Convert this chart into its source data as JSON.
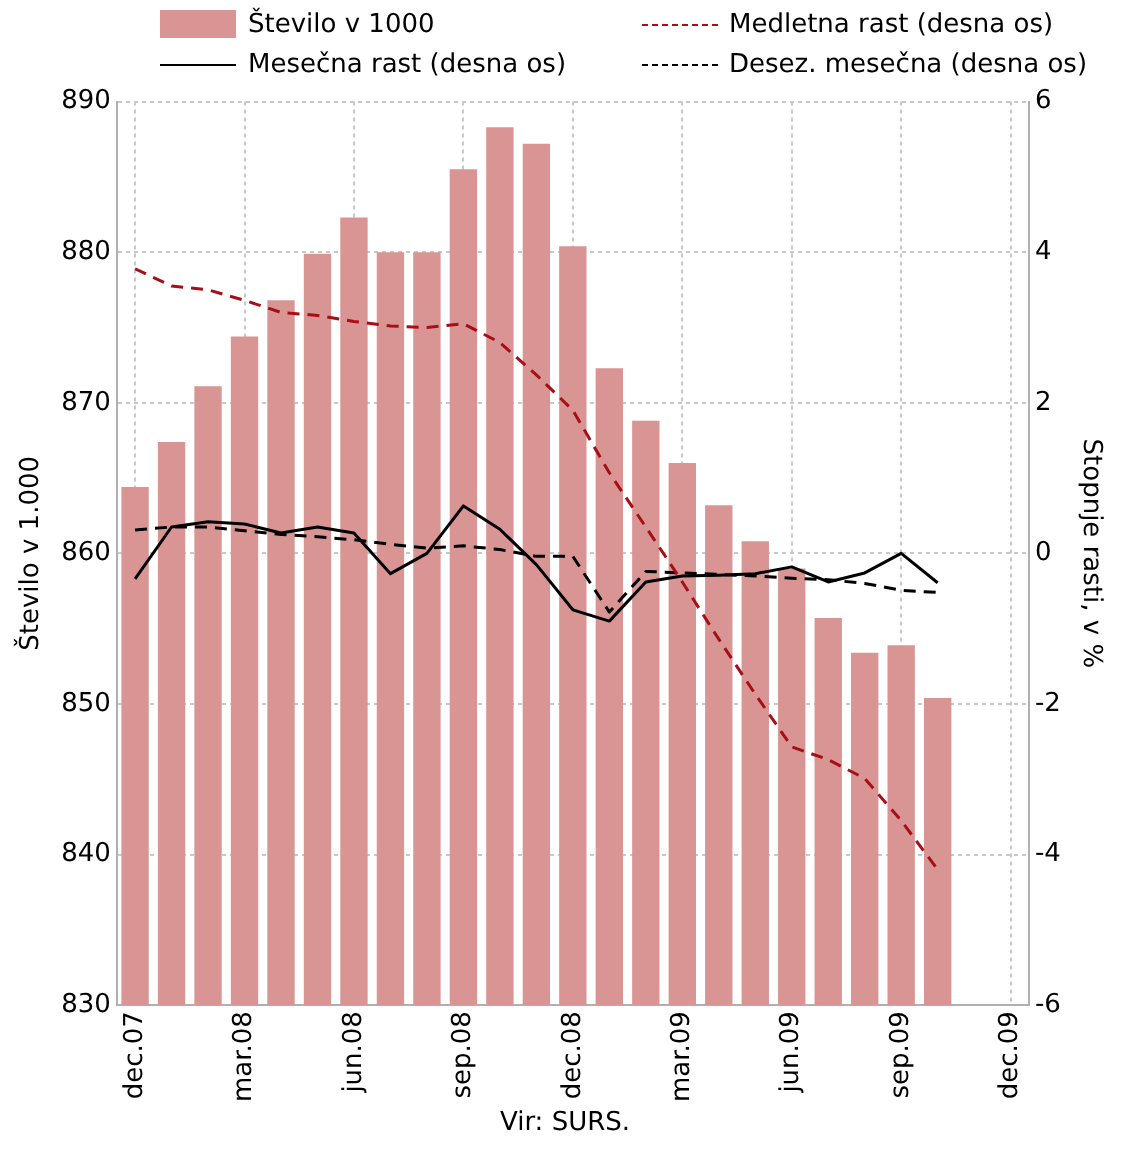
{
  "chart_data": {
    "type": "bar",
    "ylabel": "Število v 1.000",
    "y2label": "Stopnje rasti, v %",
    "annotations": [
      "Vir: SURS."
    ],
    "categories": [
      "dec.07",
      null,
      null,
      "mar.08",
      null,
      null,
      "jun.08",
      null,
      null,
      "sep.08",
      null,
      null,
      "dec.08",
      null,
      null,
      "mar.09",
      null,
      null,
      "jun.09",
      null,
      null,
      "sep.09",
      null,
      null,
      "dec.09"
    ],
    "series": [
      {
        "name": "Število v 1000",
        "color": "#d99594",
        "values": [
          864.4,
          867.4,
          871.1,
          874.4,
          876.8,
          879.9,
          882.3,
          880.0,
          880.0,
          885.5,
          888.3,
          887.2,
          880.4,
          872.3,
          868.8,
          866.0,
          863.2,
          860.8,
          859.0,
          855.7,
          853.4,
          853.9,
          850.4,
          null,
          null
        ]
      },
      {
        "name": "Medletna rast (desna os)",
        "type": "line",
        "axis": "y2",
        "line_style": "dashed",
        "color": "#a50f15",
        "values": [
          3.78,
          3.55,
          3.5,
          3.36,
          3.2,
          3.16,
          3.08,
          3.02,
          3.0,
          3.05,
          2.8,
          2.37,
          1.9,
          1.07,
          0.35,
          -0.38,
          -1.14,
          -1.87,
          -2.57,
          -2.74,
          -2.99,
          -3.55,
          -4.2,
          null,
          null
        ]
      },
      {
        "name": "Mesečna rast (desna os)",
        "type": "line",
        "axis": "y2",
        "line_style": "solid",
        "color": "#000000",
        "values": [
          -0.34,
          0.35,
          0.42,
          0.39,
          0.27,
          0.35,
          0.27,
          -0.27,
          0.0,
          0.63,
          0.32,
          -0.15,
          -0.75,
          -0.9,
          -0.38,
          -0.3,
          -0.29,
          -0.27,
          -0.18,
          -0.38,
          -0.26,
          0.0,
          -0.39,
          null,
          null
        ]
      },
      {
        "name": "Desez. mesečna (desna os)",
        "type": "line",
        "axis": "y2",
        "line_style": "dashed",
        "color": "#000000",
        "values": [
          0.31,
          0.35,
          0.35,
          0.3,
          0.25,
          0.22,
          0.18,
          0.12,
          0.07,
          0.1,
          0.05,
          -0.04,
          -0.04,
          -0.78,
          -0.24,
          -0.26,
          -0.28,
          -0.3,
          -0.33,
          -0.35,
          -0.4,
          -0.49,
          -0.52,
          null,
          null
        ]
      }
    ],
    "ylim": [
      830,
      890
    ],
    "yticks": [
      830,
      840,
      850,
      860,
      870,
      880,
      890
    ],
    "y2lim": [
      -6,
      6
    ],
    "y2ticks": [
      -6,
      -4,
      -2,
      0,
      2,
      4,
      6
    ],
    "grid": true,
    "legend": "top",
    "marker": "none"
  }
}
